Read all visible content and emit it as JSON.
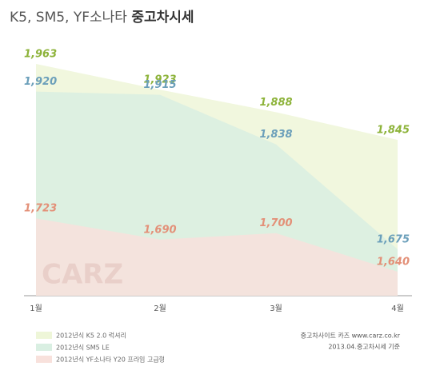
{
  "chart_data": {
    "type": "area",
    "title": "K5, SM5, YF소나타",
    "title_emphasis": "중고차시세",
    "watermark": "CARZ",
    "categories": [
      "1월",
      "2월",
      "3월",
      "4월"
    ],
    "series": [
      {
        "name": "2012년식 K5 2.0 럭셔리",
        "color": "#eef6d8",
        "label_color": "#8db33a",
        "values": [
          1963,
          1923,
          1888,
          1845
        ],
        "value_labels": [
          "1,963",
          "1,923",
          "1,888",
          "1,845"
        ]
      },
      {
        "name": "2012년식 SM5 LE",
        "color": "#d9efe2",
        "label_color": "#6b9fba",
        "values": [
          1920,
          1915,
          1838,
          1675
        ],
        "value_labels": [
          "1,920",
          "1,915",
          "1,838",
          "1,675"
        ]
      },
      {
        "name": "2012년식 YF소나타 Y20 프라임 고급형",
        "color": "#f8e1dc",
        "label_color": "#e39078",
        "values": [
          1723,
          1690,
          1700,
          1640
        ],
        "value_labels": [
          "1,723",
          "1,690",
          "1,700",
          "1,640"
        ]
      }
    ],
    "source": [
      "중고차사이트 카즈 www.carz.co.kr",
      "2013.04.중고차시세 기준"
    ]
  }
}
